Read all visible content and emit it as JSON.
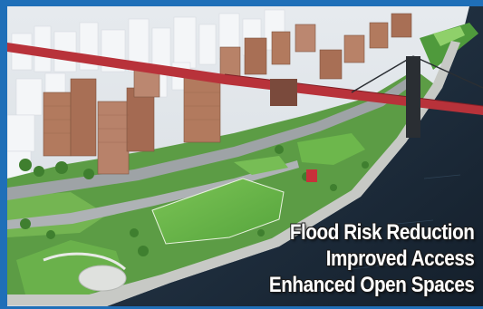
{
  "captions": {
    "line1": "Flood Risk Reduction",
    "line2": "Improved Access",
    "line3": "Enhanced Open Spaces"
  },
  "colors": {
    "frame": "#1f6fb8",
    "river": "#1b2a3a",
    "park_green": "#5fae45",
    "bridge_red": "#b8323a",
    "building_brick": "#b27a5e",
    "building_white": "#eef0f2"
  },
  "scene": {
    "description_icon": "waterfront-park-rendering"
  }
}
